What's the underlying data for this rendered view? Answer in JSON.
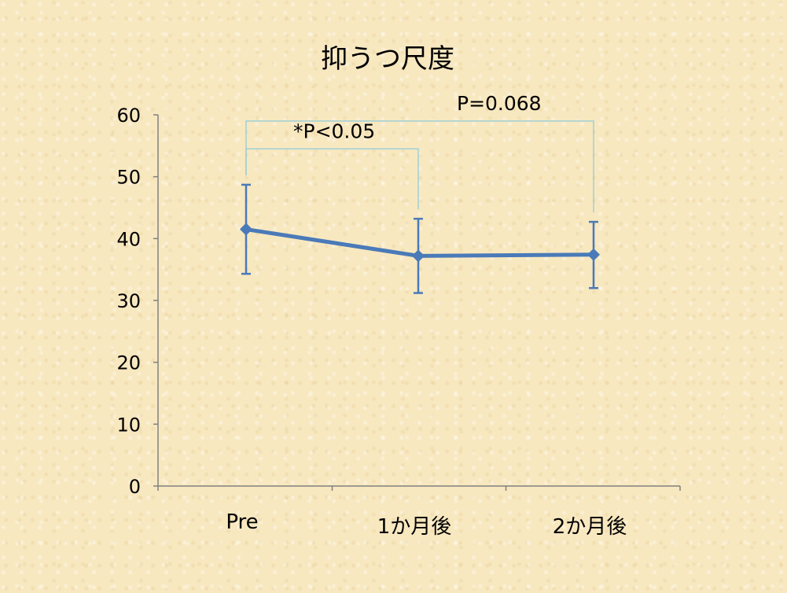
{
  "chart_data": {
    "type": "line",
    "title": "抑うつ尺度",
    "categories": [
      "Pre",
      "1か月後",
      "2か月後"
    ],
    "series": [
      {
        "values": [
          41.5,
          37.2,
          37.4
        ],
        "error_low": [
          34.3,
          31.2,
          32.0
        ],
        "error_high": [
          48.7,
          43.2,
          42.7
        ],
        "color": "#4a7ab8",
        "marker": "diamond"
      }
    ],
    "ylim": [
      0,
      60
    ],
    "yticks": [
      0,
      10,
      20,
      30,
      40,
      50,
      60
    ],
    "grid": false,
    "annotations": [
      {
        "label": "*P<0.05",
        "from": "Pre",
        "to": "1か月後",
        "bracket_level": 54.5
      },
      {
        "label": "P=0.068",
        "from": "Pre",
        "to": "2か月後",
        "bracket_level": 59.0
      }
    ],
    "axis_color": "#808080",
    "bracket_color": "#9fcfd6"
  }
}
